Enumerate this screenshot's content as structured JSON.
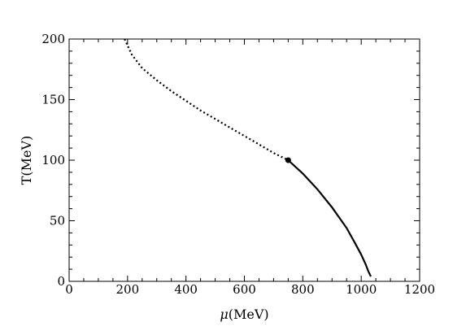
{
  "chart_data": {
    "type": "line",
    "xlabel_symbol": "μ",
    "xlabel_unit": "(MeV)",
    "ylabel": "T(MeV)",
    "xlim": [
      0,
      1200
    ],
    "ylim": [
      0,
      200
    ],
    "xticks": [
      "0",
      "200",
      "400",
      "600",
      "800",
      "1000",
      "1200"
    ],
    "yticks": [
      "0",
      "50",
      "100",
      "150",
      "200"
    ],
    "grid": false,
    "series": [
      {
        "style": "dotted",
        "color": "#000000",
        "x": [
          190,
          215,
          250,
          300,
          350,
          400,
          450,
          500,
          550,
          600,
          650,
          700,
          750
        ],
        "y": [
          200,
          187,
          176,
          166,
          157,
          149,
          141,
          134,
          127,
          120,
          113,
          106,
          100
        ]
      },
      {
        "style": "solid",
        "color": "#000000",
        "x": [
          750,
          800,
          850,
          900,
          950,
          980,
          1000,
          1015,
          1025,
          1033
        ],
        "y": [
          100,
          89,
          76,
          61,
          44,
          31,
          22,
          14,
          8,
          4
        ]
      }
    ],
    "critical_point": {
      "x": 750,
      "y": 100
    }
  }
}
